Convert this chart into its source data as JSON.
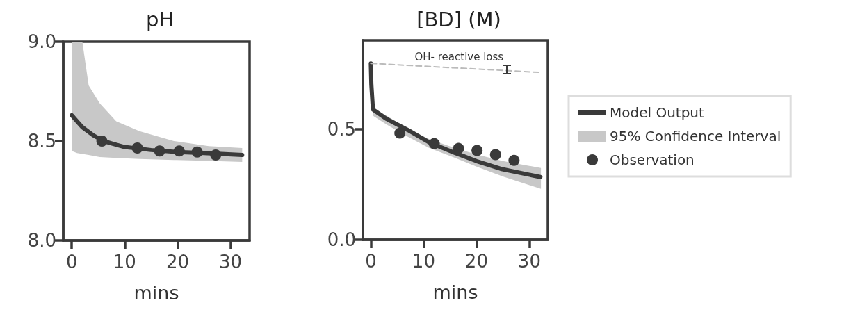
{
  "chart_data": [
    {
      "type": "line",
      "title": "pH",
      "xlabel": "mins",
      "xlim": [
        -1.6,
        33.6
      ],
      "xticks": [
        0,
        10,
        20,
        30
      ],
      "ylim": [
        8.0,
        9.0
      ],
      "yticks": [
        {
          "value": 8.0,
          "label": "8.0"
        },
        {
          "value": 8.5,
          "label": "8.5"
        },
        {
          "value": 9.0,
          "label": "9.0"
        }
      ],
      "grid": false,
      "legend": false,
      "series": [
        {
          "type": "line",
          "color": "#3a3a3a",
          "marker": "none",
          "line_style": "solid",
          "x": [
            0,
            1,
            2,
            3,
            4,
            6,
            8,
            10,
            15,
            20,
            25,
            32.2
          ],
          "values": [
            8.63,
            8.6,
            8.57,
            8.55,
            8.53,
            8.5,
            8.485,
            8.47,
            8.455,
            8.445,
            8.44,
            8.43
          ]
        },
        {
          "type": "area",
          "color": "#c8c8c8",
          "x": [
            0,
            1,
            2,
            3.2,
            5.3,
            8.4,
            12.8,
            19.3,
            25.9,
            32.2
          ],
          "values": [
            null,
            null,
            null,
            null,
            null,
            null,
            null,
            null,
            null,
            null
          ],
          "lower": [
            8.45,
            8.44,
            8.435,
            8.43,
            8.42,
            8.415,
            8.41,
            8.405,
            8.4,
            8.395
          ],
          "upper": [
            9.0,
            9.0,
            9.0,
            8.78,
            8.69,
            8.6,
            8.55,
            8.5,
            8.475,
            8.465
          ]
        },
        {
          "type": "scatter",
          "color": "#3a3a3a",
          "marker": "circle",
          "x": [
            5.7,
            12.4,
            16.6,
            20.3,
            23.7,
            27.2
          ],
          "values": [
            8.5,
            8.465,
            8.45,
            8.45,
            8.445,
            8.43
          ]
        }
      ]
    },
    {
      "type": "line",
      "title": "[BD] (M)",
      "xlabel": "mins",
      "xlim": [
        -1.5,
        33.5
      ],
      "xticks": [
        0,
        10,
        20,
        30
      ],
      "ylim": [
        0,
        0.9
      ],
      "yticks": [
        {
          "value": 0,
          "label": "0.0"
        },
        {
          "value": 0.5,
          "label": "0.5"
        }
      ],
      "grid": false,
      "legend": "right",
      "annotations": [
        "OH- reactive loss"
      ],
      "series": [
        {
          "type": "line",
          "name": "Model Output",
          "color": "#3a3a3a",
          "marker": "none",
          "line_style": "solid",
          "x": [
            0,
            0.1,
            0.4,
            3,
            7.1,
            11,
            15.8,
            20,
            24.6,
            32.1
          ],
          "values": [
            0.796,
            0.7,
            0.588,
            0.545,
            0.494,
            0.44,
            0.393,
            0.355,
            0.32,
            0.283
          ]
        },
        {
          "type": "area",
          "name": "95% Confidence Interval",
          "color": "#c8c8c8",
          "x": [
            0.4,
            3,
            7,
            11,
            15.8,
            20,
            25,
            32.2
          ],
          "values": [
            null,
            null,
            null,
            null,
            null,
            null,
            null,
            null
          ],
          "lower": [
            0.56,
            0.52,
            0.465,
            0.415,
            0.371,
            0.33,
            0.285,
            0.23
          ],
          "upper": [
            0.595,
            0.56,
            0.5,
            0.455,
            0.415,
            0.385,
            0.355,
            0.324
          ]
        },
        {
          "type": "scatter",
          "name": "Observation",
          "color": "#3a3a3a",
          "marker": "circle",
          "x": [
            5.5,
            12.0,
            16.6,
            20.1,
            23.6,
            27.1
          ],
          "values": [
            0.481,
            0.434,
            0.412,
            0.403,
            0.384,
            0.358
          ]
        },
        {
          "type": "line",
          "color": "#bbbbbb",
          "marker": "none",
          "line_style": "dashed",
          "x": [
            0,
            32.2
          ],
          "values": [
            0.796,
            0.755
          ]
        }
      ]
    }
  ]
}
